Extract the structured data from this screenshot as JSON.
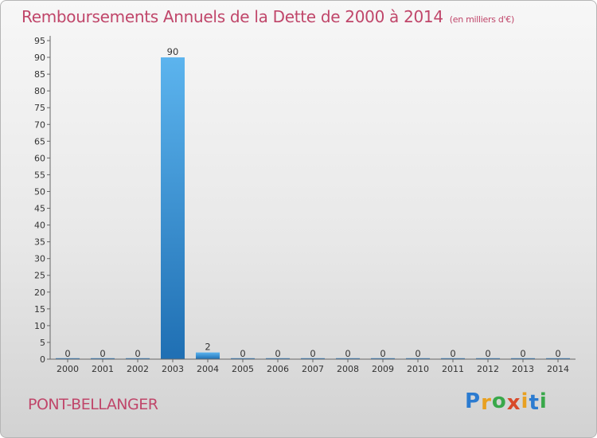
{
  "chart_data": {
    "type": "bar",
    "title": "Remboursements Annuels de la Dette de 2000 à 2014",
    "subtitle": "(en milliers d'€)",
    "categories": [
      "2000",
      "2001",
      "2002",
      "2003",
      "2004",
      "2005",
      "2006",
      "2007",
      "2008",
      "2009",
      "2010",
      "2011",
      "2012",
      "2013",
      "2014"
    ],
    "values": [
      0,
      0,
      0,
      90,
      2,
      0,
      0,
      0,
      0,
      0,
      0,
      0,
      0,
      0,
      0
    ],
    "ylim": [
      0,
      95
    ],
    "yticks": [
      0,
      5,
      10,
      15,
      20,
      25,
      30,
      35,
      40,
      45,
      50,
      55,
      60,
      65,
      70,
      75,
      80,
      85,
      90,
      95
    ],
    "xlabel": "",
    "ylabel": "",
    "grid": false,
    "bar_color": "#2f7fc6"
  },
  "footer": {
    "commune": "PONT-BELLANGER",
    "logo": {
      "letters": [
        "P",
        "r",
        "o",
        "x",
        "i",
        "t",
        "i"
      ],
      "colors": [
        "#2b7bd0",
        "#e8a020",
        "#39a84a",
        "#d84a2a",
        "#e8a020",
        "#2b7bd0",
        "#39a84a"
      ]
    }
  }
}
